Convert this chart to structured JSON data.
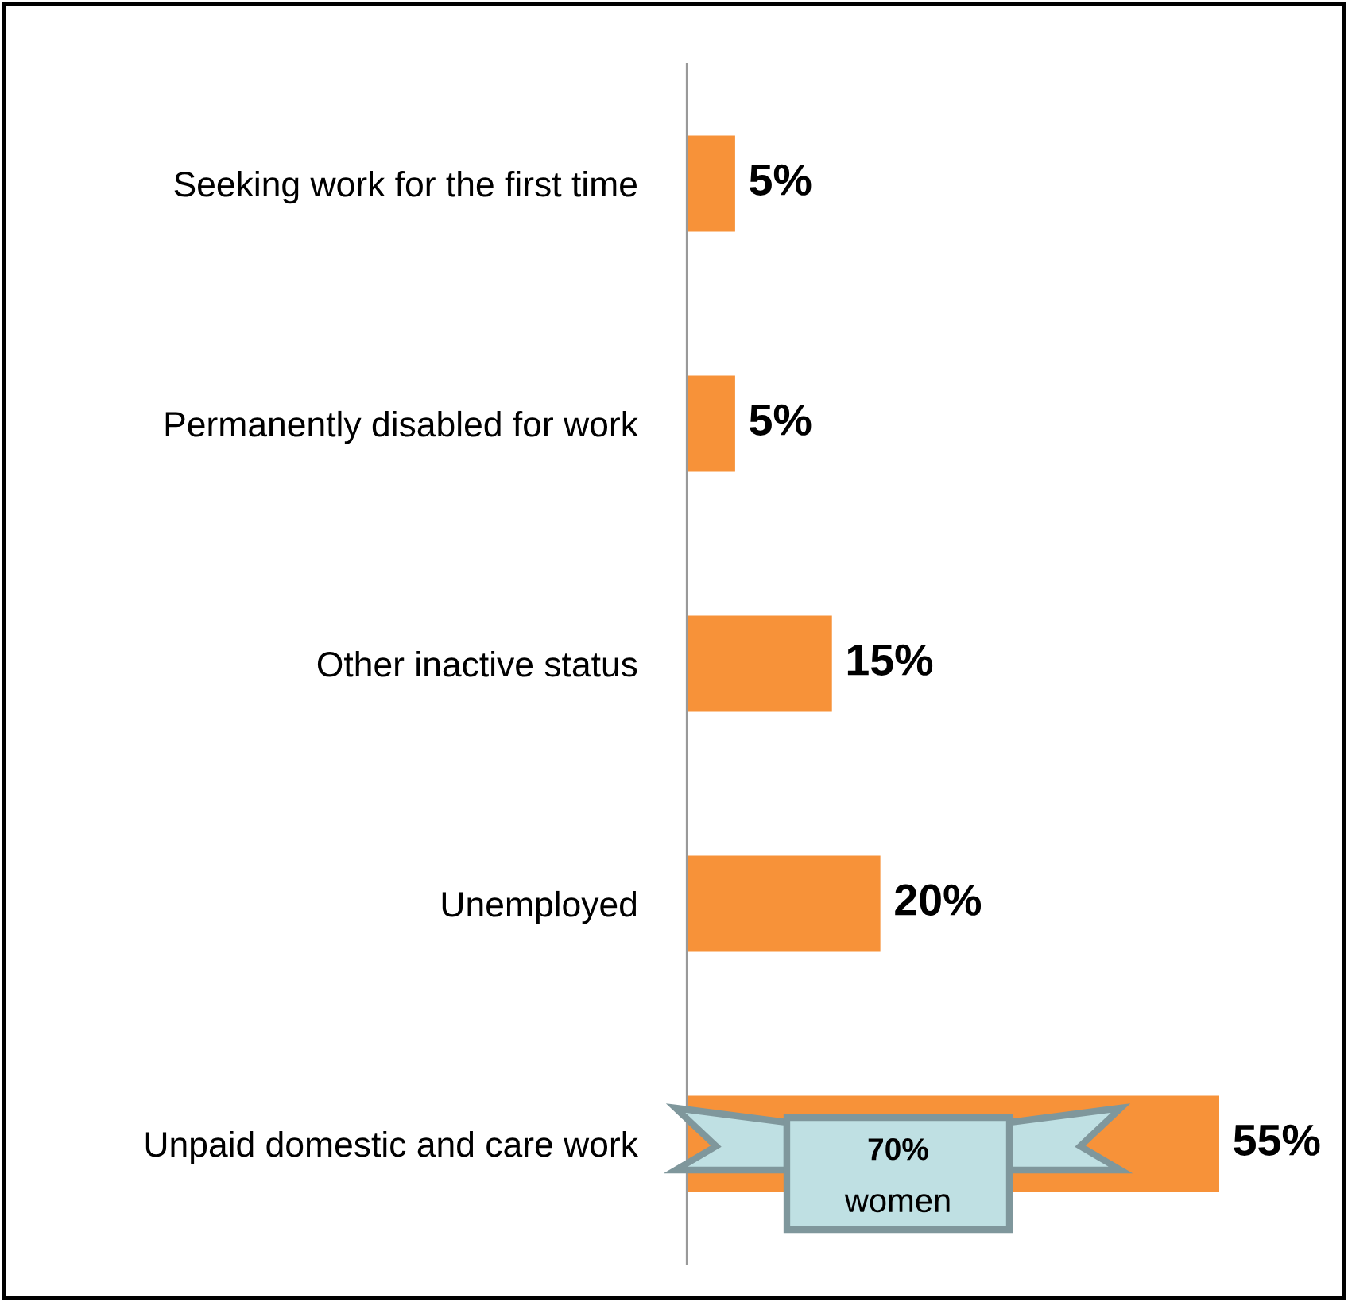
{
  "chart_data": {
    "type": "bar",
    "orientation": "horizontal",
    "categories": [
      "Seeking work for the first time",
      "Permanently disabled for work",
      "Other inactive status",
      "Unemployed",
      "Unpaid domestic and care work"
    ],
    "values": [
      5,
      5,
      15,
      20,
      55
    ],
    "color": "#f79239",
    "value_labels": [
      "5%",
      "5%",
      "15%",
      "20%",
      "55%"
    ],
    "grid": false,
    "legend": false,
    "annotations": [
      "70%",
      "women"
    ]
  }
}
